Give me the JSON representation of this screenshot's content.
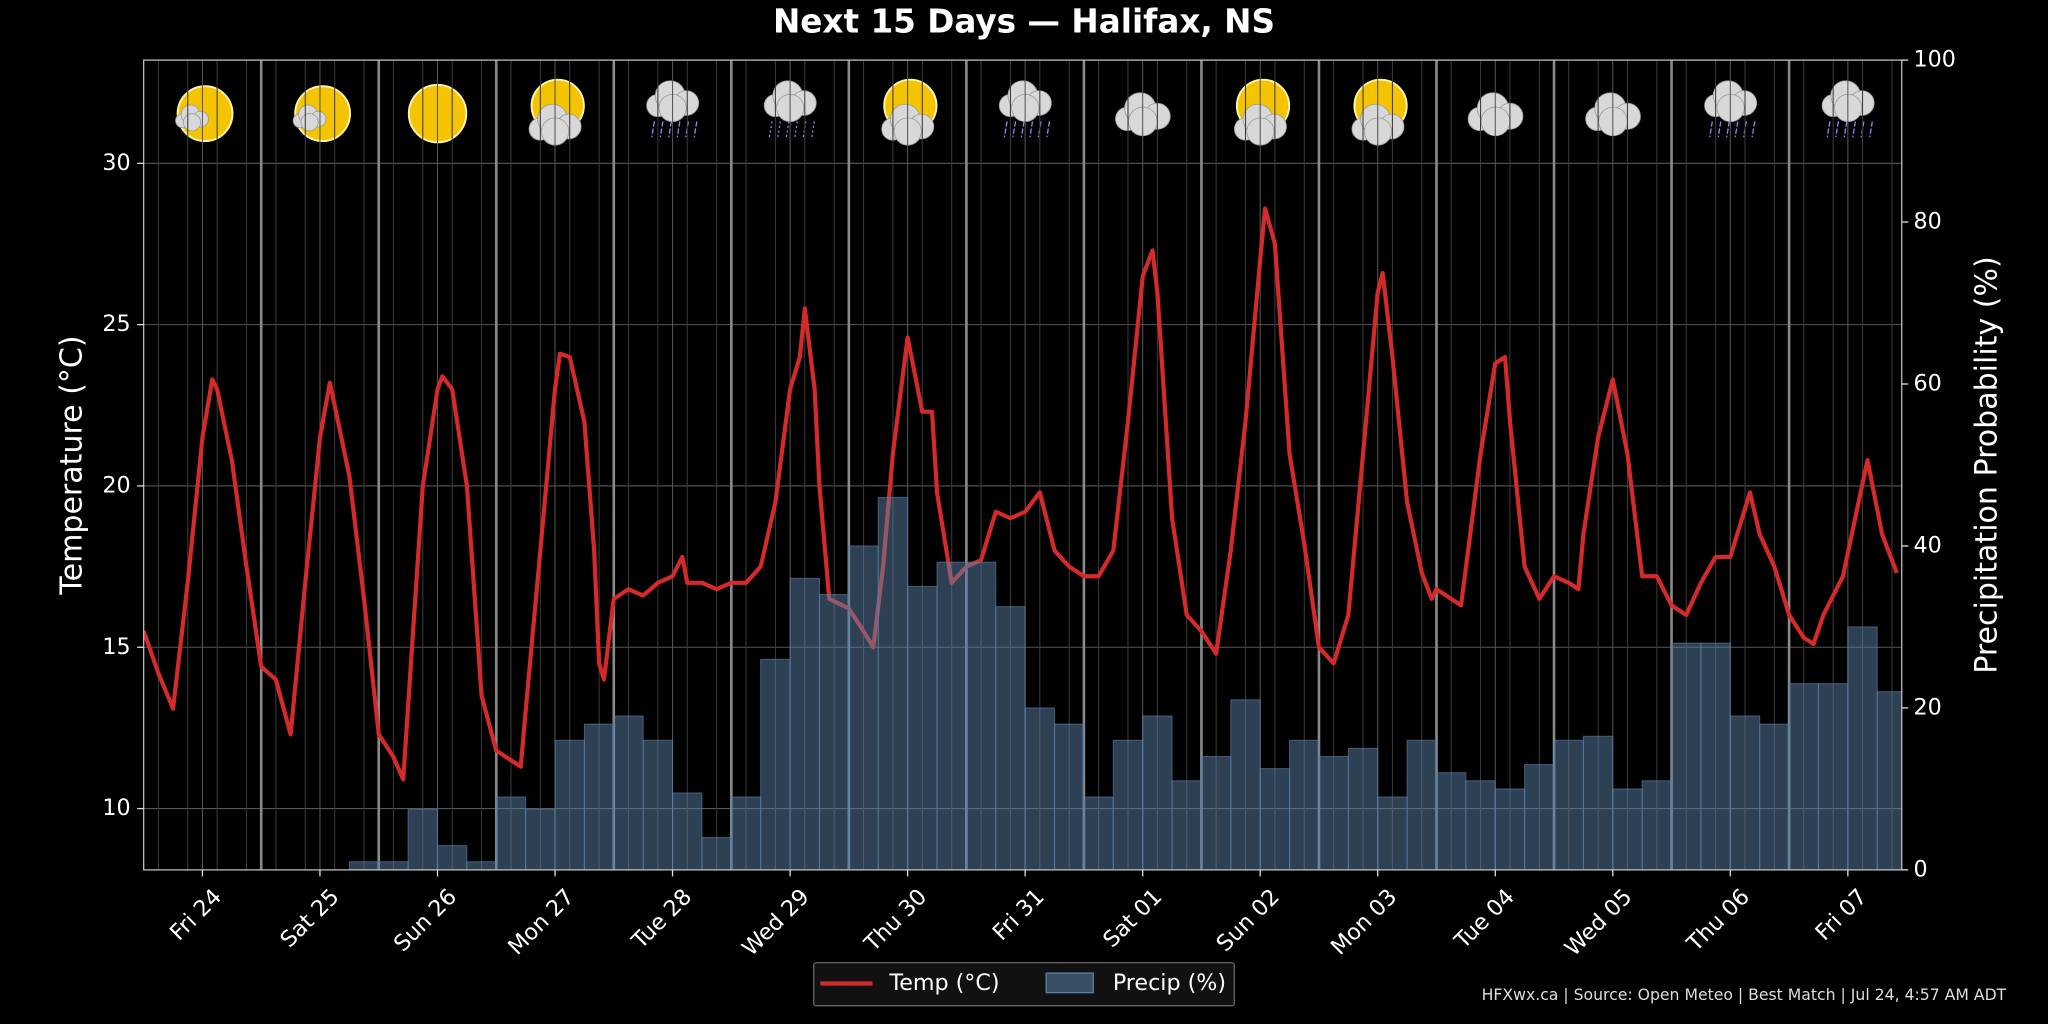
{
  "chart_data": {
    "type": "line_bar",
    "title": "Next 15 Days — Halifax, NS",
    "ylabel": "Temperature (°C)",
    "y2label": "Precipitation Probability (%)",
    "footer": "HFXwx.ca | Source: Open Meteo | Best Match | Jul 24, 4:57 AM ADT",
    "xlim": [
      0,
      359
    ],
    "xticks": [
      {
        "value": 12,
        "label": "Fri 24"
      },
      {
        "value": 36,
        "label": "Sat 25"
      },
      {
        "value": 60,
        "label": "Sun 26"
      },
      {
        "value": 84,
        "label": "Mon 27"
      },
      {
        "value": 108,
        "label": "Tue 28"
      },
      {
        "value": 132,
        "label": "Wed 29"
      },
      {
        "value": 156,
        "label": "Thu 30"
      },
      {
        "value": 180,
        "label": "Fri 31"
      },
      {
        "value": 204,
        "label": "Sat 01"
      },
      {
        "value": 228,
        "label": "Sun 02"
      },
      {
        "value": 252,
        "label": "Mon 03"
      },
      {
        "value": 276,
        "label": "Tue 04"
      },
      {
        "value": 300,
        "label": "Wed 05"
      },
      {
        "value": 324,
        "label": "Thu 06"
      },
      {
        "value": 348,
        "label": "Fri 07"
      }
    ],
    "ylim": [
      8.1,
      33.2
    ],
    "yticks": [
      10,
      15,
      20,
      25,
      30
    ],
    "y2lim": [
      0,
      100
    ],
    "y2ticks": [
      0,
      20,
      40,
      60,
      80,
      100
    ],
    "grid": true,
    "legend": "lower center",
    "series": [
      {
        "name": "Temp (°C)",
        "type": "line",
        "color": "#d42a2a",
        "x": [
          0,
          3,
          6,
          9,
          12,
          14,
          15,
          18,
          21,
          24,
          27,
          30,
          33,
          36,
          38,
          39,
          42,
          45,
          48,
          51,
          53,
          57,
          60,
          61,
          63,
          66,
          69,
          72,
          77,
          78,
          81,
          84,
          85,
          87,
          90,
          92,
          93,
          94,
          96,
          99,
          102,
          105,
          108,
          110,
          111,
          114,
          117,
          120,
          123,
          126,
          129,
          132,
          134,
          135,
          137,
          138,
          140,
          144,
          147,
          149,
          151,
          153,
          156,
          159,
          161,
          162,
          165,
          168,
          171,
          174,
          177,
          180,
          183,
          186,
          189,
          192,
          195,
          198,
          201,
          204,
          206,
          207,
          210,
          213,
          216,
          219,
          222,
          225,
          228,
          229,
          231,
          234,
          237,
          240,
          243,
          246,
          249,
          252,
          253,
          255,
          258,
          261,
          263,
          264,
          267,
          269,
          273,
          276,
          278,
          279,
          282,
          285,
          288,
          291,
          293,
          294,
          297,
          300,
          303,
          306,
          309,
          312,
          315,
          318,
          321,
          324,
          328,
          330,
          333,
          336,
          339,
          341,
          343,
          347,
          352,
          355,
          358
        ],
        "values": [
          15.5,
          14.2,
          13.1,
          17,
          21.5,
          23.3,
          23,
          20.8,
          17.5,
          14.4,
          14,
          12.3,
          17,
          21.5,
          23.2,
          22.5,
          20.3,
          16.5,
          12.3,
          11.6,
          10.9,
          20,
          23,
          23.4,
          23,
          20,
          13.5,
          11.8,
          11.3,
          13,
          18,
          23,
          24.1,
          24,
          22,
          18,
          14.5,
          14,
          16.5,
          16.8,
          16.6,
          17,
          17.2,
          17.8,
          17,
          17,
          16.8,
          17,
          17,
          17.5,
          19.5,
          23,
          24,
          25.5,
          23,
          20,
          16.5,
          16.2,
          15.5,
          15,
          17.5,
          21,
          24.6,
          22.3,
          22.3,
          19.8,
          17,
          17.5,
          17.7,
          19.2,
          19,
          19.2,
          19.8,
          18,
          17.5,
          17.2,
          17.2,
          18,
          22,
          26.5,
          27.3,
          26,
          19,
          16,
          15.5,
          14.8,
          18,
          22,
          27,
          28.6,
          27.5,
          21,
          18.2,
          15,
          14.5,
          16,
          21,
          26,
          26.6,
          24,
          19.5,
          17.3,
          16.5,
          16.8,
          16.5,
          16.3,
          21,
          23.8,
          24,
          22,
          17.5,
          16.5,
          17.2,
          17,
          16.8,
          18.5,
          21.5,
          23.3,
          21,
          17.2,
          17.2,
          16.3,
          16,
          17,
          17.8,
          17.8,
          19.8,
          18.5,
          17.5,
          16,
          15.3,
          15.1,
          16,
          17.2,
          20.8,
          18.5,
          17.3
        ]
      },
      {
        "name": "Precip (%)",
        "type": "bar",
        "axis": "y2",
        "color": "#5b82a8",
        "bins": [
          0,
          6,
          12,
          18,
          24,
          30,
          36,
          42,
          48,
          54,
          60,
          66,
          72,
          78,
          84,
          90,
          96,
          102,
          108,
          114,
          120,
          126,
          132,
          138,
          144,
          150,
          156,
          162,
          168,
          174,
          180,
          186,
          192,
          198,
          204,
          210,
          216,
          222,
          228,
          234,
          240,
          246,
          252,
          258,
          264,
          270,
          276,
          282,
          288,
          294,
          300,
          306,
          312,
          318,
          324,
          330,
          336,
          342,
          348,
          354,
          360
        ],
        "values": [
          0,
          0,
          0,
          0,
          0,
          0,
          0,
          1,
          1,
          7.5,
          3,
          1,
          9,
          7.5,
          16,
          18,
          19,
          16,
          9.5,
          4,
          9,
          26,
          36,
          34,
          40,
          46,
          35,
          38,
          38,
          32.5,
          20,
          18,
          9,
          16,
          19,
          11,
          14,
          21,
          12.5,
          16,
          14,
          15,
          9,
          16,
          12,
          11,
          10,
          13,
          16,
          16.5,
          10,
          11,
          28,
          28,
          19,
          18,
          23,
          23,
          30,
          22
        ]
      }
    ]
  }
}
